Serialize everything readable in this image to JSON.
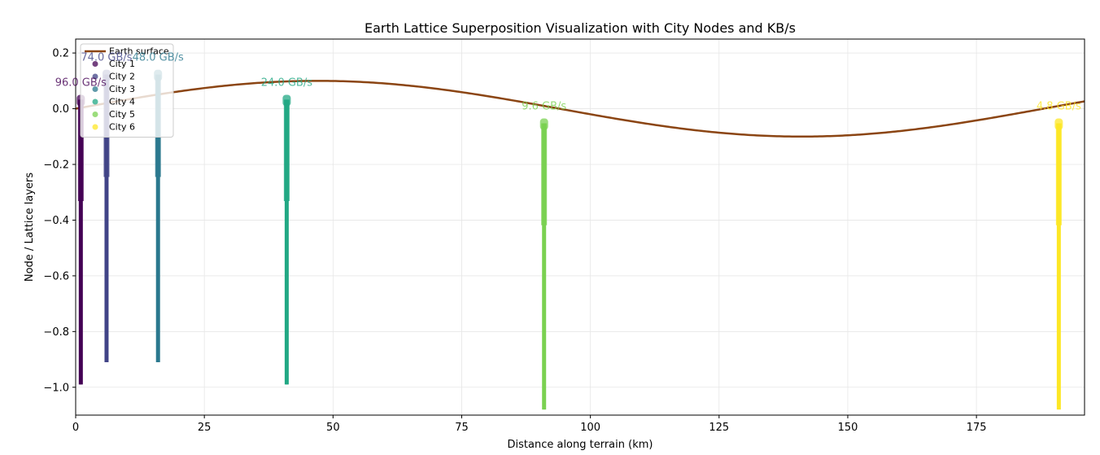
{
  "chart_data": {
    "type": "scatter",
    "title": "Earth Lattice Superposition Visualization with City Nodes and KB/s",
    "xlabel": "Distance along terrain (km)",
    "ylabel": "Node / Lattice layers",
    "xlim": [
      0,
      196
    ],
    "ylim": [
      -1.1,
      0.25
    ],
    "xticks": [
      0,
      25,
      50,
      75,
      100,
      125,
      150,
      175
    ],
    "yticks": [
      0.2,
      0.0,
      -0.2,
      -0.4,
      -0.6,
      -0.8,
      -1.0
    ],
    "xtick_labels": [
      "0",
      "25",
      "50",
      "75",
      "100",
      "125",
      "150",
      "175"
    ],
    "ytick_labels": [
      "0.2",
      "0.0",
      "−0.2",
      "−0.4",
      "−0.6",
      "−0.8",
      "−1.0"
    ],
    "grid": true,
    "legend_position": "top-left",
    "surface": {
      "name": "Earth surface",
      "color": "#8B4513",
      "amplitude": 0.1,
      "period_km": 188,
      "phase_start_km": 0,
      "x_range": [
        0,
        196
      ]
    },
    "series": [
      {
        "name": "City 1",
        "x": 1.0,
        "top": 0.05,
        "bottom": -0.99,
        "rate_label": "96.0 GB/s",
        "color": "#440154"
      },
      {
        "name": "City 2",
        "x": 6.0,
        "top": 0.14,
        "bottom": -0.91,
        "rate_label": "74.0 GB/s",
        "color": "#414487"
      },
      {
        "name": "City 3",
        "x": 16.0,
        "top": 0.14,
        "bottom": -0.91,
        "rate_label": "48.0 GB/s",
        "color": "#2a788e"
      },
      {
        "name": "City 4",
        "x": 41.0,
        "top": 0.05,
        "bottom": -0.99,
        "rate_label": "24.0 GB/s",
        "color": "#22a884"
      },
      {
        "name": "City 5",
        "x": 91.0,
        "top": -0.035,
        "bottom": -1.08,
        "rate_label": "9.6 GB/s",
        "color": "#7ad151"
      },
      {
        "name": "City 6",
        "x": 191.0,
        "top": -0.035,
        "bottom": -1.08,
        "rate_label": "4.8 GB/s",
        "color": "#fde725"
      }
    ]
  }
}
